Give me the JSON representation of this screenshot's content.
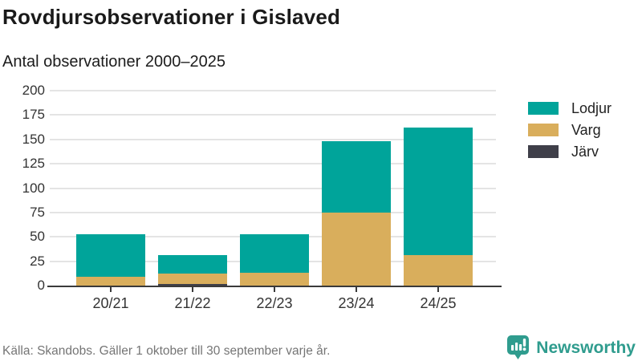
{
  "header": {
    "title": "Rovdjursobservationer i Gislaved",
    "subtitle": "Antal observationer 2000–2025"
  },
  "chart_data": {
    "type": "bar",
    "stacked": true,
    "title": "Rovdjursobservationer i Gislaved",
    "subtitle": "Antal observationer 2000–2025",
    "xlabel": "",
    "ylabel": "",
    "categories": [
      "20/21",
      "21/22",
      "22/23",
      "23/24",
      "24/25"
    ],
    "series": [
      {
        "name": "Lodjur",
        "color": "#00a49a",
        "values": [
          44,
          19,
          40,
          73,
          131
        ]
      },
      {
        "name": "Varg",
        "color": "#d9ae5c",
        "values": [
          9,
          10,
          13,
          75,
          31
        ]
      },
      {
        "name": "Järv",
        "color": "#3f3f49",
        "values": [
          0,
          2,
          0,
          0,
          0
        ]
      }
    ],
    "totals": [
      53,
      31,
      53,
      148,
      162
    ],
    "ylim": [
      0,
      200
    ],
    "yticks": [
      0,
      25,
      50,
      75,
      100,
      125,
      150,
      175,
      200
    ],
    "grid": true,
    "legend_position": "right"
  },
  "footer": {
    "source": "Källa: Skandobs. Gäller 1 oktober till 30 september varje år.",
    "brand": "Newsworthy"
  },
  "colors": {
    "lodjur": "#00a49a",
    "varg": "#d9ae5c",
    "jarv": "#3f3f49",
    "axis": "#3a3a3a",
    "grid": "#e4e4e4",
    "title_text": "#1a1a1a",
    "muted_text": "#757575",
    "brand_teal": "#2f9c8e"
  }
}
